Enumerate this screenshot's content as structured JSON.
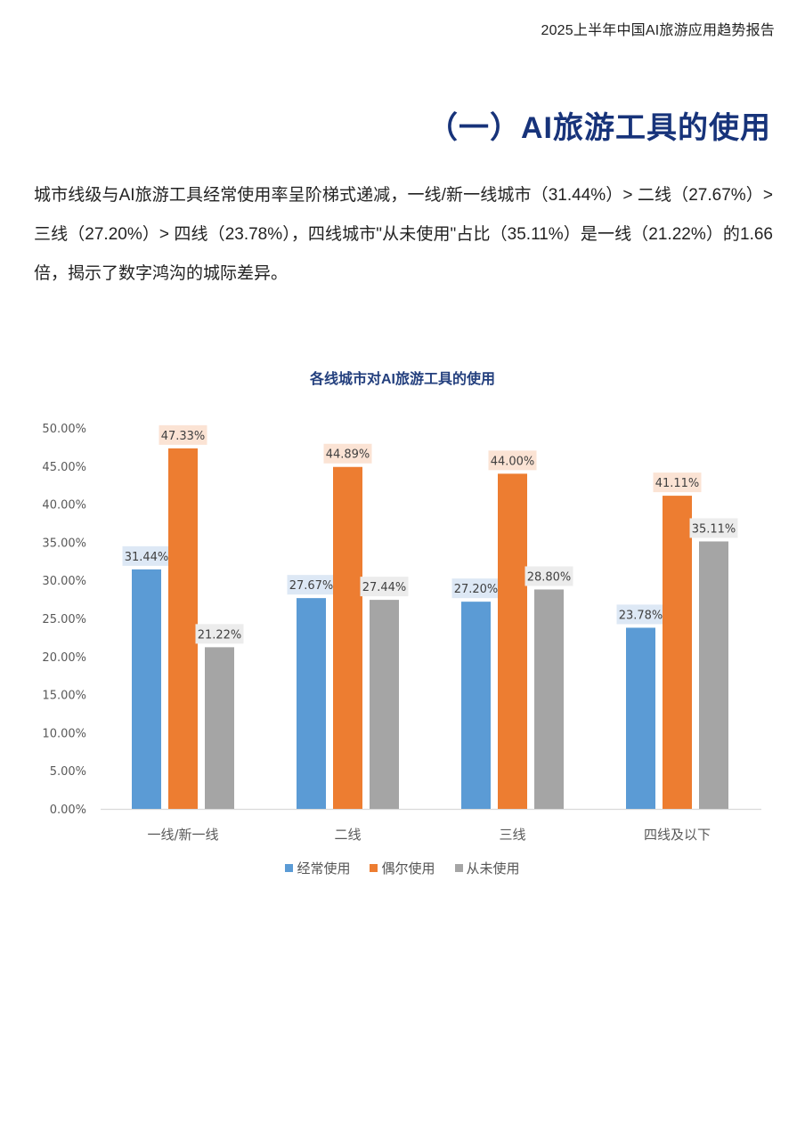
{
  "header": {
    "running_title": "2025上半年中国AI旅游应用趋势报告"
  },
  "section": {
    "title": "（一）AI旅游工具的使用"
  },
  "body": {
    "paragraph": "城市线级与AI旅游工具经常使用率呈阶梯式递减，一线/新一线城市（31.44%）> 二线（27.67%）> 三线（27.20%）> 四线（23.78%），四线城市\"从未使用\"占比（35.11%）是一线（21.22%）的1.66倍，揭示了数字鸿沟的城际差异。"
  },
  "chart_data": {
    "type": "bar",
    "title": "各线城市对AI旅游工具的使用",
    "xlabel": "",
    "ylabel": "",
    "categories": [
      "一线/新一线",
      "二线",
      "三线",
      "四线及以下"
    ],
    "series": [
      {
        "name": "经常使用",
        "color": "#5b9bd5",
        "label_bg": "#dde8f5",
        "values": [
          31.44,
          27.67,
          27.2,
          23.78
        ],
        "labels": [
          "31.44%",
          "27.67%",
          "27.20%",
          "23.78%"
        ]
      },
      {
        "name": "偶尔使用",
        "color": "#ed7d31",
        "label_bg": "#fbe3d4",
        "values": [
          47.33,
          44.89,
          44.0,
          41.11
        ],
        "labels": [
          "47.33%",
          "44.89%",
          "44.00%",
          "41.11%"
        ]
      },
      {
        "name": "从未使用",
        "color": "#a5a5a5",
        "label_bg": "#ececec",
        "values": [
          21.22,
          27.44,
          28.8,
          35.11
        ],
        "labels": [
          "21.22%",
          "27.44%",
          "28.80%",
          "35.11%"
        ]
      }
    ],
    "ylim": [
      0,
      50
    ],
    "yticks": [
      "0.00%",
      "5.00%",
      "10.00%",
      "15.00%",
      "20.00%",
      "25.00%",
      "30.00%",
      "35.00%",
      "40.00%",
      "45.00%",
      "50.00%"
    ],
    "grid": false,
    "legend_position": "bottom"
  }
}
